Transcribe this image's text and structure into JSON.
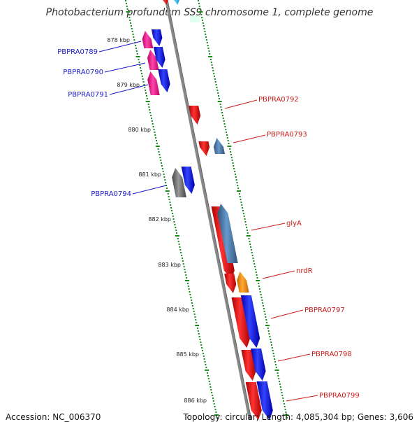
{
  "title": "Photobacterium profundum SS9 chromosome 1, complete genome",
  "footer": {
    "accession": "Accession: NC_006370",
    "stats": "Topology: circular; Length: 4,085,304 bp; Genes: 3,606"
  },
  "colors": {
    "backbone": "#888888",
    "tick": "#1a8a1a",
    "forward_label": "#1a1acc",
    "reverse_label": "#cc1a1a"
  },
  "kbp_ticks": [
    "878 kbp",
    "879 kbp",
    "880 kbp",
    "881 kbp",
    "882 kbp",
    "883 kbp",
    "884 kbp",
    "885 kbp",
    "886 kbp"
  ],
  "genes": [
    {
      "label": "PBPRA0789",
      "side": "left"
    },
    {
      "label": "PBPRA0790",
      "side": "left"
    },
    {
      "label": "PBPRA0791",
      "side": "left"
    },
    {
      "label": "PBPRA0792",
      "side": "right"
    },
    {
      "label": "PBPRA0793",
      "side": "right"
    },
    {
      "label": "PBPRA0794",
      "side": "left"
    },
    {
      "label": "glyA",
      "side": "right"
    },
    {
      "label": "nrdR",
      "side": "right"
    },
    {
      "label": "PBPRA0797",
      "side": "right"
    },
    {
      "label": "PBPRA0798",
      "side": "right"
    },
    {
      "label": "PBPRA0799",
      "side": "right"
    }
  ],
  "feature_colors": [
    "#ff0000",
    "#0000ff",
    "#ee1188",
    "#4477aa",
    "#666666",
    "#ff8800",
    "#11aadd"
  ]
}
